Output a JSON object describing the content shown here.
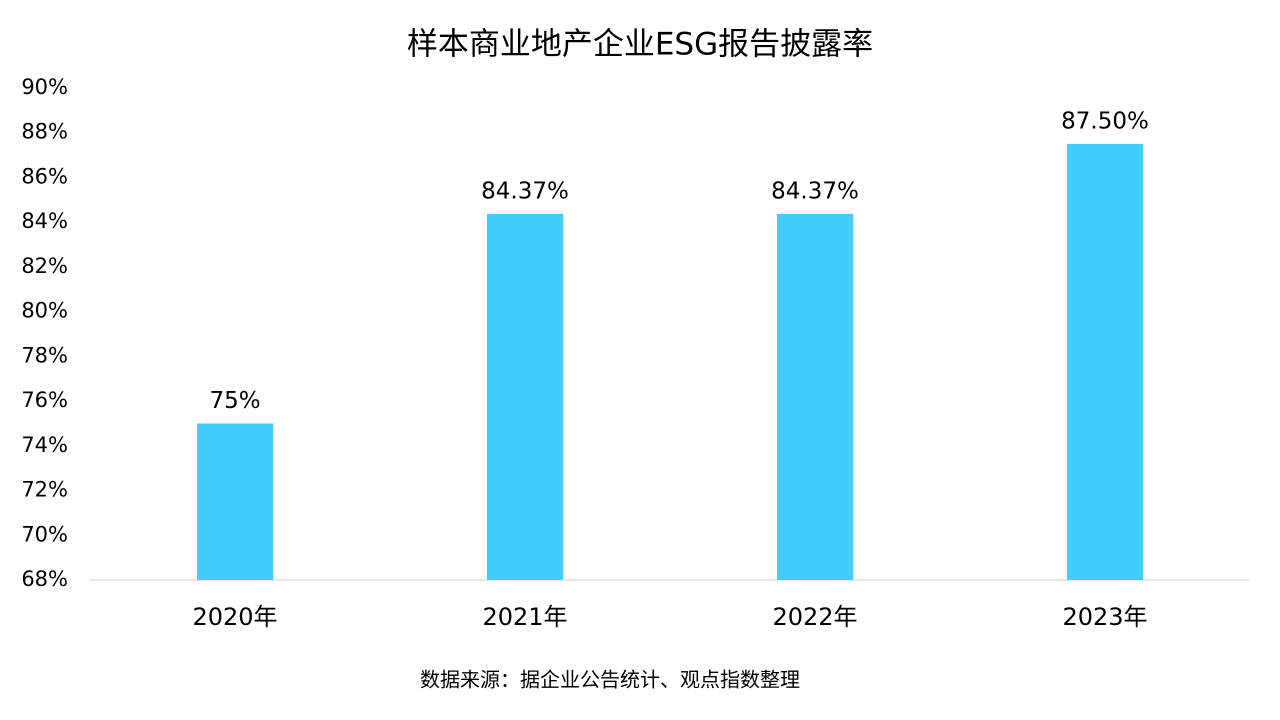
{
  "chart_data": {
    "type": "bar",
    "title": "样本商业地产企业ESG报告披露率",
    "categories": [
      "2020年",
      "2021年",
      "2022年",
      "2023年"
    ],
    "values": [
      75,
      84.37,
      84.37,
      87.5
    ],
    "value_labels": [
      "75%",
      "84.37%",
      "84.37%",
      "87.50%"
    ],
    "color": "#43cdff",
    "ylim": [
      68,
      90
    ],
    "yticks": [
      {
        "value": 68,
        "label": "68%"
      },
      {
        "value": 70,
        "label": "70%"
      },
      {
        "value": 72,
        "label": "72%"
      },
      {
        "value": 74,
        "label": "74%"
      },
      {
        "value": 76,
        "label": "76%"
      },
      {
        "value": 78,
        "label": "78%"
      },
      {
        "value": 80,
        "label": "80%"
      },
      {
        "value": 82,
        "label": "82%"
      },
      {
        "value": 84,
        "label": "84%"
      },
      {
        "value": 86,
        "label": "86%"
      },
      {
        "value": 88,
        "label": "88%"
      },
      {
        "value": 90,
        "label": "90%"
      }
    ],
    "grid": false,
    "note": "数据来源：据企业公告统计、观点指数整理"
  }
}
